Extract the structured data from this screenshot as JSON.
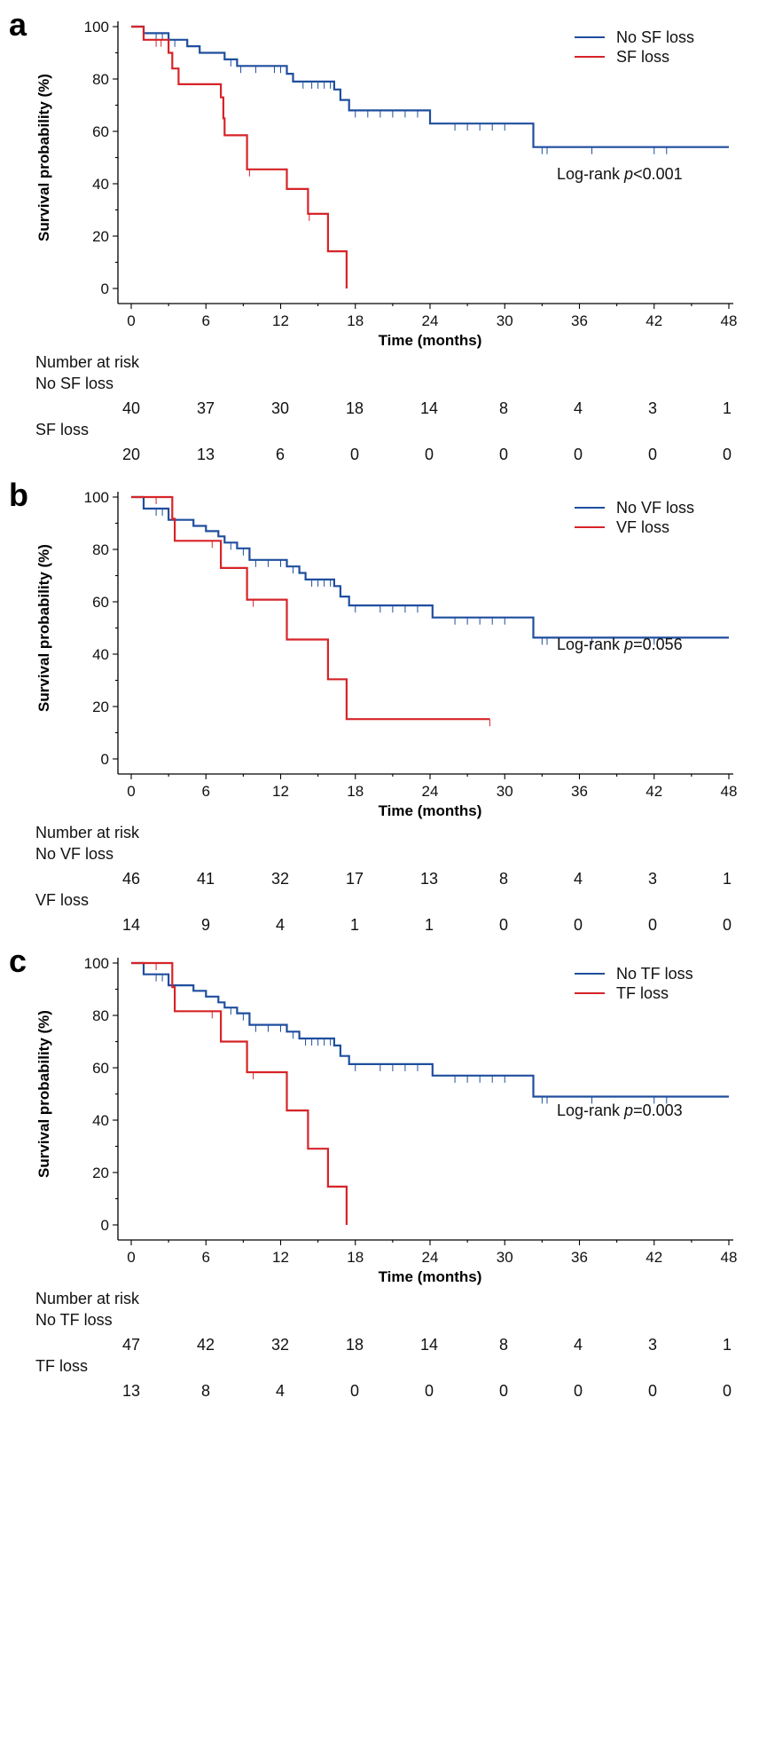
{
  "chart_data": [
    {
      "type": "line",
      "panel_label": "a",
      "title": "",
      "xlabel": "Time (months)",
      "ylabel": "Survival probability (%)",
      "xlim": [
        0,
        48
      ],
      "ylim": [
        0,
        100
      ],
      "x_ticks": [
        0,
        6,
        12,
        18,
        24,
        30,
        36,
        42,
        48
      ],
      "y_ticks": [
        0,
        20,
        40,
        60,
        80,
        100
      ],
      "grid": false,
      "legend_position": "top-right",
      "annotation": {
        "prefix": "Log-rank ",
        "italic": "p",
        "suffix": "<0.001"
      },
      "series": [
        {
          "name": "No SF loss",
          "color": "#1f4e9e",
          "steps": [
            [
              0,
              100
            ],
            [
              1,
              97.5
            ],
            [
              3,
              95
            ],
            [
              4.5,
              92.5
            ],
            [
              5.5,
              90
            ],
            [
              7.5,
              87.5
            ],
            [
              8.5,
              85
            ],
            [
              12.5,
              82
            ],
            [
              13,
              79
            ],
            [
              16.3,
              76
            ],
            [
              16.8,
              72
            ],
            [
              17.5,
              68
            ],
            [
              24,
              63
            ],
            [
              32.3,
              54
            ],
            [
              48,
              54
            ]
          ],
          "censor_times": [
            2,
            2.5,
            3.5,
            8,
            8.8,
            10,
            11.5,
            12,
            13.8,
            14.5,
            15,
            15.5,
            16,
            18,
            19,
            20,
            21,
            22,
            23,
            26,
            27,
            28,
            29,
            30,
            33,
            33.4,
            37,
            42,
            43
          ]
        },
        {
          "name": "SF loss",
          "color": "#d62428",
          "steps": [
            [
              0,
              100
            ],
            [
              1,
              95
            ],
            [
              3,
              90
            ],
            [
              3.3,
              84
            ],
            [
              3.8,
              78
            ],
            [
              7.2,
              73
            ],
            [
              7.4,
              65
            ],
            [
              7.5,
              58.5
            ],
            [
              9.3,
              45.5
            ],
            [
              12.5,
              38
            ],
            [
              14.2,
              28.5
            ],
            [
              15.8,
              14.2
            ],
            [
              17.3,
              0
            ]
          ],
          "censor_times": [
            2,
            2.4,
            9.5,
            14.3
          ]
        }
      ],
      "risk_table": {
        "title": "Number at risk",
        "groups": [
          {
            "name": "No SF loss",
            "values": [
              40,
              37,
              30,
              18,
              14,
              8,
              4,
              3,
              1
            ]
          },
          {
            "name": "SF loss",
            "values": [
              20,
              13,
              6,
              0,
              0,
              0,
              0,
              0,
              0
            ]
          }
        ]
      }
    },
    {
      "type": "line",
      "panel_label": "b",
      "title": "",
      "xlabel": "Time (months)",
      "ylabel": "Survival probability (%)",
      "xlim": [
        0,
        48
      ],
      "ylim": [
        0,
        100
      ],
      "x_ticks": [
        0,
        6,
        12,
        18,
        24,
        30,
        36,
        42,
        48
      ],
      "y_ticks": [
        0,
        20,
        40,
        60,
        80,
        100
      ],
      "grid": false,
      "legend_position": "top-right",
      "annotation": {
        "prefix": "Log-rank ",
        "italic": "p",
        "suffix": "=0.056"
      },
      "series": [
        {
          "name": "No VF loss",
          "color": "#1f4e9e",
          "steps": [
            [
              0,
              100
            ],
            [
              1,
              95.6
            ],
            [
              3,
              91.3
            ],
            [
              5,
              89
            ],
            [
              6,
              87
            ],
            [
              7,
              85
            ],
            [
              7.5,
              82.6
            ],
            [
              8.5,
              80.4
            ],
            [
              9.5,
              76
            ],
            [
              12.5,
              73.5
            ],
            [
              13.5,
              71
            ],
            [
              14,
              68.5
            ],
            [
              16.3,
              66
            ],
            [
              16.8,
              62
            ],
            [
              17.5,
              58.6
            ],
            [
              24.2,
              54
            ],
            [
              32.3,
              46.3
            ],
            [
              48,
              46.3
            ]
          ],
          "censor_times": [
            2,
            2.5,
            8,
            9,
            10,
            11,
            12,
            13,
            14.5,
            15,
            15.5,
            16,
            18,
            20,
            21,
            22,
            23,
            26,
            27,
            28,
            29,
            30,
            33,
            33.4,
            37,
            42,
            43
          ]
        },
        {
          "name": "VF loss",
          "color": "#d62428",
          "steps": [
            [
              0,
              100
            ],
            [
              3.3,
              91.7
            ],
            [
              3.5,
              83.3
            ],
            [
              7.2,
              72.9
            ],
            [
              9.3,
              60.8
            ],
            [
              12.5,
              45.6
            ],
            [
              15.8,
              30.4
            ],
            [
              17.3,
              15.2
            ],
            [
              28.8,
              15.2
            ]
          ],
          "censor_times": [
            2,
            6.5,
            9.8,
            28.8
          ]
        }
      ],
      "risk_table": {
        "title": "Number at risk",
        "groups": [
          {
            "name": "No VF loss",
            "values": [
              46,
              41,
              32,
              17,
              13,
              8,
              4,
              3,
              1
            ]
          },
          {
            "name": "VF loss",
            "values": [
              14,
              9,
              4,
              1,
              1,
              0,
              0,
              0,
              0
            ]
          }
        ]
      }
    },
    {
      "type": "line",
      "panel_label": "c",
      "title": "",
      "xlabel": "Time (months)",
      "ylabel": "Survival probability (%)",
      "xlim": [
        0,
        48
      ],
      "ylim": [
        0,
        100
      ],
      "x_ticks": [
        0,
        6,
        12,
        18,
        24,
        30,
        36,
        42,
        48
      ],
      "y_ticks": [
        0,
        20,
        40,
        60,
        80,
        100
      ],
      "grid": false,
      "legend_position": "top-right",
      "annotation": {
        "prefix": "Log-rank ",
        "italic": "p",
        "suffix": "=0.003"
      },
      "series": [
        {
          "name": "No TF loss",
          "color": "#1f4e9e",
          "steps": [
            [
              0,
              100
            ],
            [
              1,
              95.7
            ],
            [
              3,
              91.5
            ],
            [
              5,
              89.4
            ],
            [
              6,
              87.2
            ],
            [
              7,
              85
            ],
            [
              7.5,
              83
            ],
            [
              8.5,
              80.8
            ],
            [
              9.5,
              76.4
            ],
            [
              12.5,
              73.8
            ],
            [
              13.5,
              71.2
            ],
            [
              16.3,
              68.5
            ],
            [
              16.8,
              64.5
            ],
            [
              17.5,
              61.4
            ],
            [
              24.2,
              57
            ],
            [
              32.3,
              49
            ],
            [
              48,
              49
            ]
          ],
          "censor_times": [
            2,
            2.5,
            8,
            9,
            10,
            11,
            12,
            13,
            14,
            14.5,
            15,
            15.5,
            16,
            18,
            20,
            21,
            22,
            23,
            26,
            27,
            28,
            29,
            30,
            33,
            33.4,
            37,
            42,
            43
          ]
        },
        {
          "name": "TF loss",
          "color": "#d62428",
          "steps": [
            [
              0,
              100
            ],
            [
              3.3,
              90.8
            ],
            [
              3.5,
              81.6
            ],
            [
              7.2,
              70
            ],
            [
              9.3,
              58.3
            ],
            [
              12.5,
              43.7
            ],
            [
              14.2,
              29.1
            ],
            [
              15.8,
              14.6
            ],
            [
              17.3,
              0
            ]
          ],
          "censor_times": [
            2,
            6.5,
            9.8
          ]
        }
      ],
      "risk_table": {
        "title": "Number at risk",
        "groups": [
          {
            "name": "No TF loss",
            "values": [
              47,
              42,
              32,
              18,
              14,
              8,
              4,
              3,
              1
            ]
          },
          {
            "name": "TF loss",
            "values": [
              13,
              8,
              4,
              0,
              0,
              0,
              0,
              0,
              0
            ]
          }
        ]
      }
    }
  ]
}
